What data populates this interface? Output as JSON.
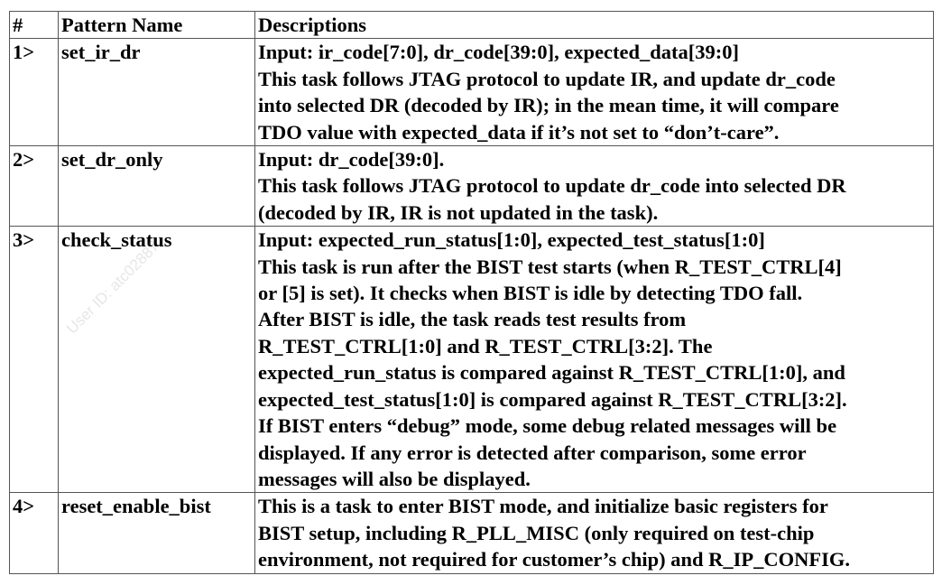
{
  "table": {
    "headers": {
      "num": "#",
      "name": "Pattern Name",
      "desc": "Descriptions"
    },
    "rows": [
      {
        "num": "1>",
        "name": "set_ir_dr",
        "lines": [
          "Input: ir_code[7:0], dr_code[39:0], expected_data[39:0]",
          "This task follows JTAG protocol to update IR, and update dr_code",
          "into selected DR (decoded by IR); in the mean time, it will compare",
          "TDO value with expected_data if it’s not set to “don’t-care”."
        ]
      },
      {
        "num": "2>",
        "name": "set_dr_only",
        "lines": [
          "Input: dr_code[39:0].",
          "This task follows JTAG protocol to update dr_code into selected DR",
          "(decoded by IR, IR is not updated in the task)."
        ]
      },
      {
        "num": "3>",
        "name": "check_status",
        "lines": [
          "Input: expected_run_status[1:0], expected_test_status[1:0]",
          "This task is run after the BIST test starts (when R_TEST_CTRL[4]",
          "or [5] is set).    It checks when BIST is idle by detecting TDO fall.",
          "After BIST is idle, the task reads test results from",
          "R_TEST_CTRL[1:0] and R_TEST_CTRL[3:2].    The",
          "expected_run_status is compared against R_TEST_CTRL[1:0], and",
          "expected_test_status[1:0] is compared against R_TEST_CTRL[3:2].",
          "If BIST enters “debug” mode, some debug related messages will be",
          "displayed.    If any error is detected after comparison, some error",
          "messages will also be displayed."
        ]
      },
      {
        "num": "4>",
        "name": "reset_enable_bist",
        "lines": [
          "This is a task to enter BIST mode, and initialize basic registers for",
          "BIST setup, including R_PLL_MISC (only required on test-chip",
          "environment, not required for customer’s chip) and R_IP_CONFIG."
        ]
      }
    ]
  },
  "watermark": "User ID: atc02887"
}
